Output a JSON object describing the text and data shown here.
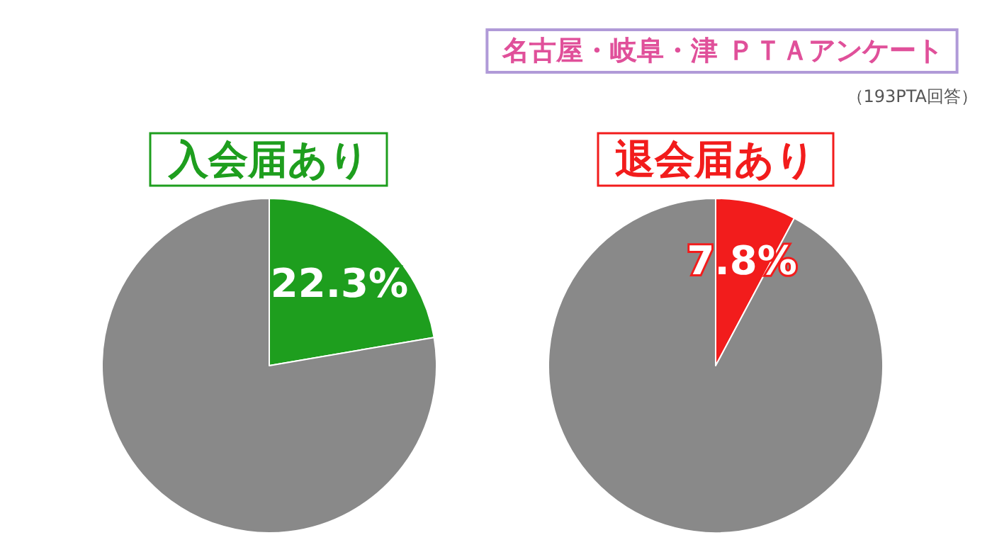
{
  "chart_data": [
    {
      "type": "other",
      "title": "名古屋・岐阜・津 ＰＴＡアンケート",
      "subtitle": "（193PTA回答）"
    },
    {
      "type": "pie",
      "title": "入会届あり",
      "categories": [
        null,
        null
      ],
      "values": [
        22.3,
        77.7
      ],
      "colors": [
        "#1e9e1e",
        "#898989"
      ],
      "value_labels": [
        "22.3%",
        null
      ]
    },
    {
      "type": "pie",
      "title": "退会届あり",
      "categories": [
        null,
        null
      ],
      "values": [
        7.8,
        92.2
      ],
      "colors": [
        "#f21c1c",
        "#898989"
      ],
      "value_labels": [
        "7.8%",
        null
      ]
    }
  ]
}
